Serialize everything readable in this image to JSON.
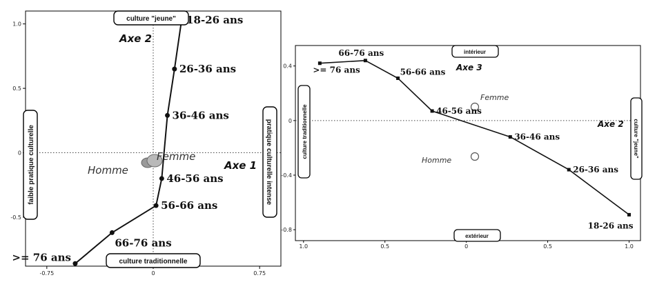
{
  "chart_data": [
    {
      "type": "scatter",
      "xlim": [
        -0.9,
        0.9
      ],
      "ylim": [
        -0.88,
        1.1
      ],
      "x_ticks": [
        {
          "value": -0.75,
          "label": "-0.75"
        },
        {
          "value": 0,
          "label": "0"
        },
        {
          "value": 0.75,
          "label": "0.75"
        }
      ],
      "y_ticks": [
        {
          "value": 1.0,
          "label": "1.0"
        },
        {
          "value": 0.5,
          "label": "0.5"
        },
        {
          "value": 0,
          "label": "0"
        },
        {
          "value": -0.5,
          "label": "-0.5"
        }
      ],
      "axis_names": {
        "horizontal": "Axe 1",
        "vertical": "Axe 2"
      },
      "pole_labels": {
        "top": "culture \"jeune\"",
        "bottom": "culture traditionnelle",
        "left": "faible pratique culturelle",
        "right": "pratique culturelle intense"
      },
      "series": [
        {
          "points": [
            {
              "label": ">= 76 ans",
              "x": -0.55,
              "y": -0.86
            },
            {
              "label": "66-76 ans",
              "x": -0.29,
              "y": -0.62
            },
            {
              "label": "56-66 ans",
              "x": 0.02,
              "y": -0.41
            },
            {
              "label": "46-56 ans",
              "x": 0.06,
              "y": -0.2
            },
            {
              "label": "36-46 ans",
              "x": 0.1,
              "y": 0.29
            },
            {
              "label": "26-36 ans",
              "x": 0.15,
              "y": 0.65
            },
            {
              "label": "18-26 ans",
              "x": 0.2,
              "y": 1.03
            }
          ]
        }
      ],
      "supplementary": [
        {
          "label": "Femme",
          "x": 0.03,
          "y": 0.03
        },
        {
          "label": "Homme",
          "x": -0.03,
          "y": -0.01
        }
      ]
    },
    {
      "type": "scatter",
      "xlim": [
        1.05,
        -1.07
      ],
      "ylim": [
        -0.88,
        0.55
      ],
      "x_ticks": [
        {
          "value": 1.0,
          "label": "1.0"
        },
        {
          "value": 0.5,
          "label": "0.5"
        },
        {
          "value": 0,
          "label": "0"
        },
        {
          "value": -0.5,
          "label": "0.5"
        },
        {
          "value": -1.0,
          "label": "1.0"
        }
      ],
      "y_ticks": [
        {
          "value": 0.4,
          "label": "0.4"
        },
        {
          "value": 0,
          "label": "0"
        },
        {
          "value": -0.4,
          "label": "-0.4"
        },
        {
          "value": -0.8,
          "label": "-0.8"
        }
      ],
      "axis_names": {
        "horizontal": "Axe 2",
        "vertical": "Axe 3"
      },
      "pole_labels": {
        "top": "intérieur",
        "bottom": "extérieur",
        "left": "culture traditionnelle",
        "right": "culture \"jeune\""
      },
      "series": [
        {
          "points": [
            {
              "label": ">= 76 ans",
              "x": 0.9,
              "y": 0.42
            },
            {
              "label": "66-76 ans",
              "x": 0.62,
              "y": 0.44
            },
            {
              "label": "56-66 ans",
              "x": 0.42,
              "y": 0.31
            },
            {
              "label": "46-56 ans",
              "x": 0.21,
              "y": 0.07
            },
            {
              "label": "36-46 ans",
              "x": -0.27,
              "y": -0.12
            },
            {
              "label": "26-36 ans",
              "x": -0.63,
              "y": -0.36
            },
            {
              "label": "18-26 ans",
              "x": -1.0,
              "y": -0.69
            }
          ]
        }
      ],
      "supplementary": [
        {
          "label": "Femme",
          "x": 0.0,
          "y": 0.16
        },
        {
          "label": "Homme",
          "x": 0.0,
          "y": -0.2
        }
      ]
    }
  ]
}
